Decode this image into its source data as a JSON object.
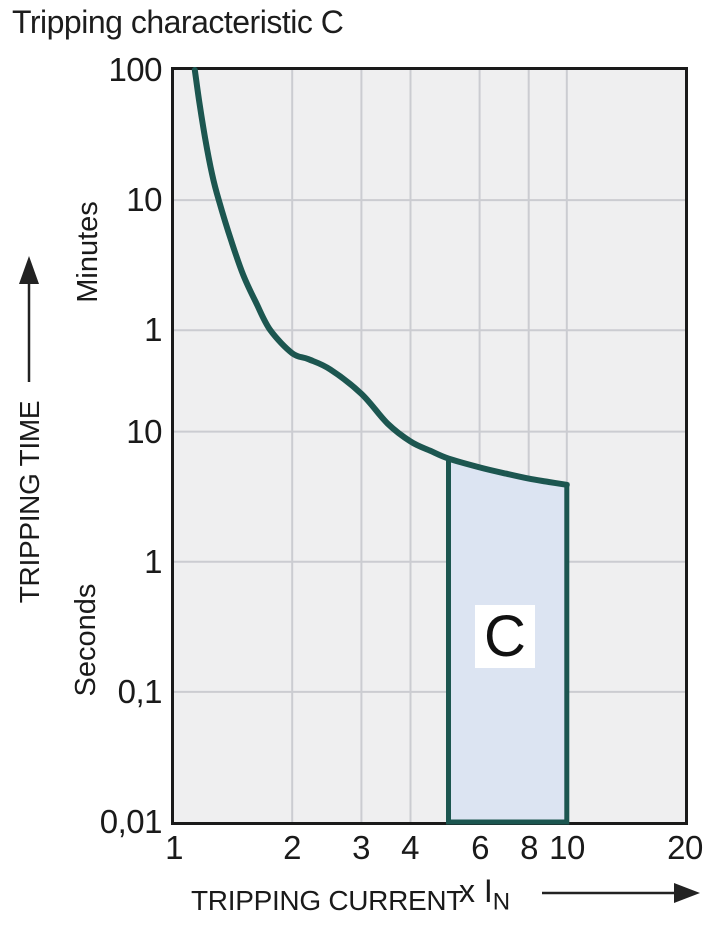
{
  "chart_data": {
    "type": "line",
    "title": "Tripping characteristic C",
    "x_axis": {
      "label": "TRIPPING CURRENT",
      "unit": "x I",
      "unit_sub": "N",
      "scale": "log",
      "min": 1,
      "max": 20,
      "tick_labels": [
        "1",
        "2",
        "3",
        "4",
        "6",
        "8",
        "10",
        "20"
      ],
      "tick_values": [
        1,
        2,
        3,
        4,
        6,
        8,
        10,
        20
      ],
      "grid_values": [
        2,
        3,
        4,
        6,
        8,
        10
      ]
    },
    "y_axis": {
      "label": "TRIPPING TIME",
      "unit_upper": "Minutes",
      "unit_lower": "Seconds",
      "scale": "log",
      "min_seconds": 0.01,
      "max_seconds": 6000,
      "ticks": [
        {
          "label": "100",
          "seconds": 6000,
          "unit": "minutes"
        },
        {
          "label": "10",
          "seconds": 600,
          "unit": "minutes"
        },
        {
          "label": "1",
          "seconds": 60,
          "unit": "minutes"
        },
        {
          "label": "10",
          "seconds": 10,
          "unit": "seconds"
        },
        {
          "label": "1",
          "seconds": 1,
          "unit": "seconds"
        },
        {
          "label": "0,1",
          "seconds": 0.1,
          "unit": "seconds"
        },
        {
          "label": "0,01",
          "seconds": 0.01,
          "unit": "seconds"
        }
      ],
      "grid_values": [
        600,
        60,
        10,
        1,
        0.1
      ]
    },
    "series": [
      {
        "name": "C characteristic trip curve",
        "points_x_In_vs_seconds": [
          [
            1.13,
            6000
          ],
          [
            1.16,
            3400
          ],
          [
            1.2,
            1800
          ],
          [
            1.25,
            950
          ],
          [
            1.3,
            600
          ],
          [
            1.4,
            290
          ],
          [
            1.5,
            160
          ],
          [
            1.62,
            97
          ],
          [
            1.76,
            60
          ],
          [
            2,
            40
          ],
          [
            2.2,
            36
          ],
          [
            2.5,
            30
          ],
          [
            3,
            19.5
          ],
          [
            3.5,
            11.5
          ],
          [
            4,
            8.4
          ],
          [
            4.5,
            7.1
          ],
          [
            5,
            6.2
          ],
          [
            6,
            5.3
          ],
          [
            7,
            4.75
          ],
          [
            8,
            4.35
          ],
          [
            9,
            4.1
          ],
          [
            10,
            3.9
          ]
        ]
      }
    ],
    "band": {
      "label": "C",
      "x_from": 5,
      "x_to": 10,
      "top_seconds_at_x_from": 6.2,
      "top_seconds_at_x_to": 3.9,
      "bottom_seconds": 0.01
    },
    "grid": true,
    "legend": "none",
    "colors": {
      "curve": "#1c5650",
      "band_fill": "#dce4f2",
      "band_stroke": "#1c5650",
      "grid": "#cbccd1",
      "plot_bg": "#efeff0",
      "plot_border": "#1a1a1a",
      "text": "#1a1a1a",
      "band_label_bg": "#ffffff"
    }
  }
}
